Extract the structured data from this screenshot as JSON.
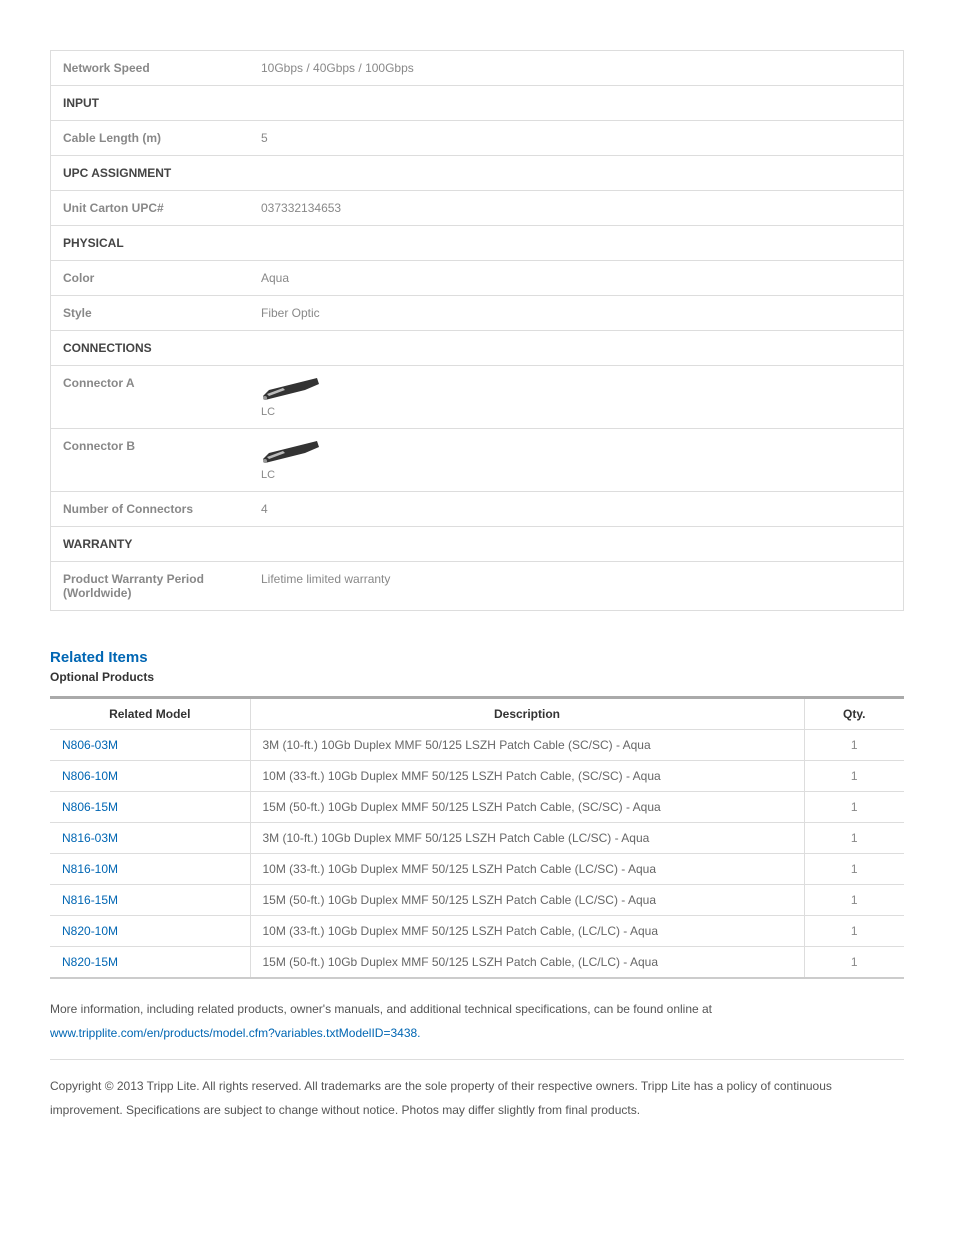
{
  "specs": {
    "network_speed_label": "Network Speed",
    "network_speed_value": "10Gbps / 40Gbps / 100Gbps",
    "input_section": "INPUT",
    "cable_length_label": "Cable Length (m)",
    "cable_length_value": "5",
    "upc_section": "UPC ASSIGNMENT",
    "unit_carton_label": "Unit Carton UPC#",
    "unit_carton_value": "037332134653",
    "physical_section": "PHYSICAL",
    "color_label": "Color",
    "color_value": "Aqua",
    "style_label": "Style",
    "style_value": "Fiber Optic",
    "connections_section": "CONNECTIONS",
    "connector_a_label": "Connector A",
    "connector_a_caption": "LC",
    "connector_b_label": "Connector B",
    "connector_b_caption": "LC",
    "num_connectors_label": "Number of Connectors",
    "num_connectors_value": "4",
    "warranty_section": "WARRANTY",
    "warranty_label": "Product Warranty Period (Worldwide)",
    "warranty_value": "Lifetime limited warranty"
  },
  "related": {
    "heading": "Related Items",
    "subheading": "Optional Products",
    "columns": {
      "model": "Related Model",
      "desc": "Description",
      "qty": "Qty."
    },
    "rows": [
      {
        "model": "N806-03M",
        "desc": "3M (10-ft.) 10Gb Duplex MMF 50/125 LSZH Patch Cable (SC/SC) - Aqua",
        "qty": "1"
      },
      {
        "model": "N806-10M",
        "desc": "10M (33-ft.) 10Gb Duplex MMF 50/125 LSZH Patch Cable, (SC/SC) - Aqua",
        "qty": "1"
      },
      {
        "model": "N806-15M",
        "desc": "15M (50-ft.) 10Gb Duplex MMF 50/125 LSZH Patch Cable, (SC/SC) - Aqua",
        "qty": "1"
      },
      {
        "model": "N816-03M",
        "desc": "3M (10-ft.) 10Gb Duplex MMF 50/125 LSZH Patch Cable (LC/SC) - Aqua",
        "qty": "1"
      },
      {
        "model": "N816-10M",
        "desc": "10M (33-ft.) 10Gb Duplex MMF 50/125 LSZH Patch Cable (LC/SC) - Aqua",
        "qty": "1"
      },
      {
        "model": "N816-15M",
        "desc": "15M (50-ft.) 10Gb Duplex MMF 50/125 LSZH Patch Cable (LC/SC) - Aqua",
        "qty": "1"
      },
      {
        "model": "N820-10M",
        "desc": "10M (33-ft.) 10Gb Duplex MMF 50/125 LSZH Patch Cable, (LC/LC) - Aqua",
        "qty": "1"
      },
      {
        "model": "N820-15M",
        "desc": "15M (50-ft.) 10Gb Duplex MMF 50/125 LSZH Patch Cable, (LC/LC) - Aqua",
        "qty": "1"
      }
    ]
  },
  "footer": {
    "more_info_text": "More information, including related products, owner's manuals, and additional technical specifications, can be found online at",
    "more_info_link": "www.tripplite.com/en/products/model.cfm?variables.txtModelID=3438.",
    "copyright": "Copyright © 2013 Tripp Lite. All rights reserved. All trademarks are the sole property of their respective owners. Tripp Lite has a policy of continuous improvement. Specifications are subject to change without notice. Photos may differ slightly from final products."
  },
  "colors": {
    "link": "#0066b3",
    "border": "#dddddd",
    "muted": "#888888"
  }
}
